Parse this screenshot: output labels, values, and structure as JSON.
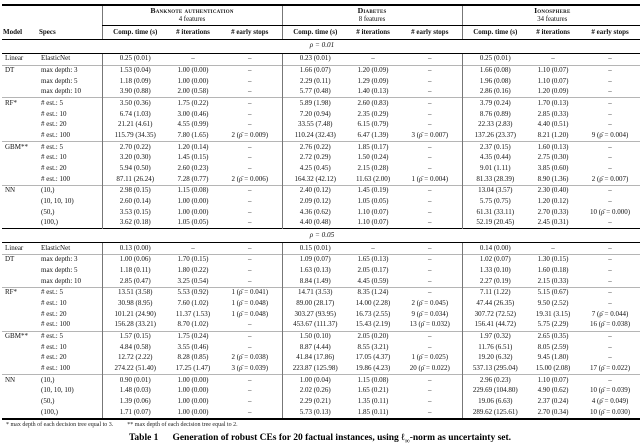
{
  "table": {
    "groups": [
      {
        "name": "Banknote authentication",
        "subtitle": "4 features"
      },
      {
        "name": "Diabetes",
        "subtitle": "8 features"
      },
      {
        "name": "Ionosphere",
        "subtitle": "34 features"
      }
    ],
    "col_headers": {
      "model": "Model",
      "specs": "Specs",
      "metrics": [
        "Comp. time (s)",
        "# iterations",
        "# early stops"
      ]
    },
    "sections": [
      {
        "label": "ρ = 0.01",
        "rows": [
          {
            "model": "Linear",
            "spec": "ElasticNet",
            "cells": [
              "0.25 (0.01)",
              "–",
              "–",
              "0.23 (0.01)",
              "–",
              "–",
              "0.25 (0.01)",
              "–",
              "–"
            ]
          },
          {
            "model": "DT",
            "spec": "max depth: 3",
            "cells": [
              "1.53 (0.04)",
              "1.00 (0.00)",
              "–",
              "1.66 (0.07)",
              "1.20 (0.09)",
              "–",
              "1.66 (0.08)",
              "1.10 (0.07)",
              "–"
            ]
          },
          {
            "model": "",
            "spec": "max depth: 5",
            "cells": [
              "1.18 (0.09)",
              "1.00 (0.00)",
              "–",
              "2.29 (0.11)",
              "1.29 (0.09)",
              "–",
              "1.96 (0.08)",
              "1.10 (0.07)",
              "–"
            ]
          },
          {
            "model": "",
            "spec": "max depth: 10",
            "cells": [
              "3.90 (0.88)",
              "2.00 (0.58)",
              "–",
              "5.77 (0.48)",
              "1.40 (0.13)",
              "–",
              "2.86 (0.16)",
              "1.20 (0.09)",
              "–"
            ]
          },
          {
            "model": "RF*",
            "spec": "# est.: 5",
            "cells": [
              "3.50 (0.36)",
              "1.75 (0.22)",
              "–",
              "5.89 (1.98)",
              "2.60 (0.83)",
              "–",
              "3.79 (0.24)",
              "1.70 (0.13)",
              "–"
            ]
          },
          {
            "model": "",
            "spec": "# est.: 10",
            "cells": [
              "6.74 (1.03)",
              "3.00 (0.46)",
              "–",
              "7.20 (0.94)",
              "2.35 (0.29)",
              "–",
              "8.76 (0.89)",
              "2.85 (0.33)",
              "–"
            ]
          },
          {
            "model": "",
            "spec": "# est.: 20",
            "cells": [
              "21.21 (4.61)",
              "4.55 (0.99)",
              "–",
              "33.55 (7.48)",
              "6.15 (0.79)",
              "–",
              "22.33 (2.83)",
              "4.40 (0.51)",
              "–"
            ]
          },
          {
            "model": "",
            "spec": "# est.: 100",
            "cells": [
              "115.79 (34.35)",
              "7.80 (1.65)",
              "2 (ρ̄ = 0.009)",
              "110.24 (32.43)",
              "6.47 (1.39)",
              "3 (ρ̄ = 0.007)",
              "137.26 (23.37)",
              "8.21 (1.20)",
              "9 (ρ̄ = 0.004)"
            ]
          },
          {
            "model": "GBM**",
            "spec": "# est.: 5",
            "cells": [
              "2.70 (0.22)",
              "1.20 (0.14)",
              "–",
              "2.76 (0.22)",
              "1.85 (0.17)",
              "–",
              "2.37 (0.15)",
              "1.60 (0.13)",
              "–"
            ]
          },
          {
            "model": "",
            "spec": "# est.: 10",
            "cells": [
              "3.20 (0.30)",
              "1.45 (0.15)",
              "–",
              "2.72 (0.29)",
              "1.50 (0.24)",
              "–",
              "4.35 (0.44)",
              "2.75 (0.30)",
              "–"
            ]
          },
          {
            "model": "",
            "spec": "# est.: 20",
            "cells": [
              "5.94 (0.50)",
              "2.60 (0.23)",
              "–",
              "4.25 (0.45)",
              "2.15 (0.28)",
              "–",
              "9.01 (1.11)",
              "3.85 (0.60)",
              "–"
            ]
          },
          {
            "model": "",
            "spec": "# est.: 100",
            "cells": [
              "87.11 (26.24)",
              "7.28 (0.77)",
              "2 (ρ̄ = 0.006)",
              "164.32 (42.12)",
              "11.63 (2.00)",
              "1 (ρ̄ = 0.004)",
              "81.33 (28.39)",
              "8.90 (1.36)",
              "2 (ρ̄ = 0.007)"
            ]
          },
          {
            "model": "NN",
            "spec": "(10,)",
            "cells": [
              "2.98 (0.15)",
              "1.15 (0.08)",
              "–",
              "2.40 (0.12)",
              "1.45 (0.19)",
              "–",
              "13.04 (3.57)",
              "2.30 (0.40)",
              "–"
            ]
          },
          {
            "model": "",
            "spec": "(10, 10, 10)",
            "cells": [
              "2.60 (0.14)",
              "1.00 (0.00)",
              "–",
              "2.09 (0.12)",
              "1.05 (0.05)",
              "–",
              "5.75 (0.75)",
              "1.20 (0.12)",
              "–"
            ]
          },
          {
            "model": "",
            "spec": "(50,)",
            "cells": [
              "3.53 (0.15)",
              "1.00 (0.00)",
              "–",
              "4.36 (0.62)",
              "1.10 (0.07)",
              "–",
              "61.31 (33.11)",
              "2.70 (0.33)",
              "10 (ρ̄ = 0.000)"
            ]
          },
          {
            "model": "",
            "spec": "(100,)",
            "cells": [
              "3.62 (0.18)",
              "1.05 (0.05)",
              "–",
              "4.40 (0.48)",
              "1.10 (0.07)",
              "–",
              "52.19 (20.45)",
              "2.45 (0.31)",
              "–"
            ]
          }
        ]
      },
      {
        "label": "ρ = 0.05",
        "rows": [
          {
            "model": "Linear",
            "spec": "ElasticNet",
            "cells": [
              "0.13 (0.00)",
              "–",
              "–",
              "0.15 (0.01)",
              "–",
              "–",
              "0.14 (0.00)",
              "–",
              "–"
            ]
          },
          {
            "model": "DT",
            "spec": "max depth: 3",
            "cells": [
              "1.00 (0.06)",
              "1.70 (0.15)",
              "–",
              "1.09 (0.07)",
              "1.65 (0.13)",
              "–",
              "1.02 (0.07)",
              "1.30 (0.15)",
              "–"
            ]
          },
          {
            "model": "",
            "spec": "max depth: 5",
            "cells": [
              "1.18 (0.11)",
              "1.80 (0.22)",
              "–",
              "1.63 (0.13)",
              "2.05 (0.17)",
              "–",
              "1.33 (0.10)",
              "1.60 (0.18)",
              "–"
            ]
          },
          {
            "model": "",
            "spec": "max depth: 10",
            "cells": [
              "2.85 (0.47)",
              "3.25 (0.54)",
              "–",
              "8.84 (1.49)",
              "4.45 (0.59)",
              "–",
              "2.27 (0.19)",
              "2.15 (0.33)",
              "–"
            ]
          },
          {
            "model": "RF*",
            "spec": "# est.: 5",
            "cells": [
              "13.51 (3.58)",
              "5.53 (0.92)",
              "1 (ρ̄ = 0.041)",
              "14.71 (3.53)",
              "8.35 (1.24)",
              "–",
              "7.11 (1.22)",
              "5.15 (0.67)",
              "–"
            ]
          },
          {
            "model": "",
            "spec": "# est.: 10",
            "cells": [
              "30.98 (8.95)",
              "7.60 (1.02)",
              "1 (ρ̄ = 0.048)",
              "89.00 (28.17)",
              "14.00 (2.28)",
              "2 (ρ̄ = 0.045)",
              "47.44 (26.35)",
              "9.50 (2.52)",
              "–"
            ]
          },
          {
            "model": "",
            "spec": "# est.: 20",
            "cells": [
              "101.21 (24.90)",
              "11.37 (1.53)",
              "1 (ρ̄ = 0.048)",
              "303.27 (93.95)",
              "16.73 (2.55)",
              "9 (ρ̄ = 0.034)",
              "307.72 (72.52)",
              "19.31 (3.15)",
              "7 (ρ̄ = 0.044)"
            ]
          },
          {
            "model": "",
            "spec": "# est.: 100",
            "cells": [
              "156.28 (33.21)",
              "8.70 (1.02)",
              "–",
              "453.67 (111.37)",
              "15.43 (2.19)",
              "13 (ρ̄ = 0.032)",
              "156.41 (44.72)",
              "5.75 (2.29)",
              "16 (ρ̄ = 0.038)"
            ]
          },
          {
            "model": "GBM**",
            "spec": "# est.: 5",
            "cells": [
              "1.57 (0.15)",
              "1.75 (0.24)",
              "–",
              "1.50 (0.10)",
              "2.05 (0.20)",
              "–",
              "1.97 (0.32)",
              "2.65 (0.35)",
              "–"
            ]
          },
          {
            "model": "",
            "spec": "# est.: 10",
            "cells": [
              "4.84 (0.58)",
              "3.55 (0.46)",
              "–",
              "8.87 (4.44)",
              "8.55 (3.21)",
              "–",
              "11.76 (6.51)",
              "8.05 (2.59)",
              "–"
            ]
          },
          {
            "model": "",
            "spec": "# est.: 20",
            "cells": [
              "12.72 (2.22)",
              "8.28 (0.85)",
              "2 (ρ̄ = 0.038)",
              "41.84 (17.86)",
              "17.05 (4.37)",
              "1 (ρ̄ = 0.025)",
              "19.20 (6.32)",
              "9.45 (1.80)",
              "–"
            ]
          },
          {
            "model": "",
            "spec": "# est.: 100",
            "cells": [
              "274.22 (51.40)",
              "17.25 (1.47)",
              "3 (ρ̄ = 0.039)",
              "223.87 (125.98)",
              "19.86 (4.23)",
              "20 (ρ̄ = 0.022)",
              "537.13 (295.04)",
              "15.00 (2.08)",
              "17 (ρ̄ = 0.022)"
            ]
          },
          {
            "model": "NN",
            "spec": "(10,)",
            "cells": [
              "0.90 (0.01)",
              "1.00 (0.00)",
              "–",
              "1.00 (0.04)",
              "1.15 (0.08)",
              "–",
              "2.96 (0.23)",
              "1.10 (0.07)",
              "–"
            ]
          },
          {
            "model": "",
            "spec": "(10, 10, 10)",
            "cells": [
              "1.48 (0.03)",
              "1.00 (0.00)",
              "–",
              "2.02 (0.26)",
              "1.65 (0.21)",
              "–",
              "229.69 (104.80)",
              "4.90 (0.62)",
              "10 (ρ̄ = 0.039)"
            ]
          },
          {
            "model": "",
            "spec": "(50,)",
            "cells": [
              "1.39 (0.06)",
              "1.00 (0.00)",
              "–",
              "2.29 (0.21)",
              "1.35 (0.11)",
              "–",
              "19.06 (6.63)",
              "2.37 (0.24)",
              "4 (ρ̄ = 0.049)"
            ]
          },
          {
            "model": "",
            "spec": "(100,)",
            "cells": [
              "1.71 (0.07)",
              "1.00 (0.00)",
              "–",
              "5.73 (0.13)",
              "1.85 (0.11)",
              "–",
              "289.62 (125.61)",
              "2.70 (0.34)",
              "10 (ρ̄ = 0.030)"
            ]
          }
        ]
      }
    ],
    "footnotes": [
      "* max depth of each decision tree equal to 3.",
      "** max depth of each decision tree equal to 2."
    ],
    "caption": {
      "label": "Table 1",
      "prefix": "Generation of robust CEs for 20 factual instances, using ",
      "ell": "ℓ",
      "sub": "∞",
      "suffix": "-norm as uncertainty set."
    }
  }
}
